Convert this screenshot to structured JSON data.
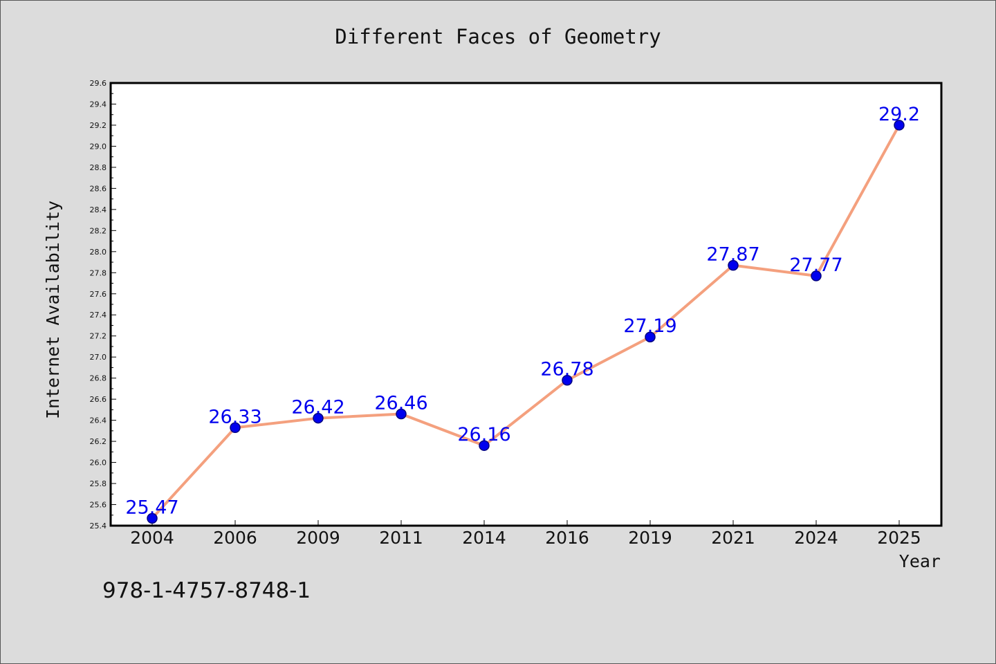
{
  "chart_data": {
    "type": "line",
    "title": "Different Faces of Geometry",
    "xlabel": "Year",
    "ylabel": "Internet Availability",
    "categories": [
      "2004",
      "2006",
      "2009",
      "2011",
      "2014",
      "2016",
      "2019",
      "2021",
      "2024",
      "2025"
    ],
    "series": [
      {
        "values": [
          25.47,
          26.33,
          26.42,
          26.46,
          26.16,
          26.78,
          27.19,
          27.87,
          27.77,
          29.2
        ]
      }
    ],
    "data_labels": [
      "25.47",
      "26.33",
      "26.42",
      "26.46",
      "26.16",
      "26.78",
      "27.19",
      "27.87",
      "27.77",
      "29.2"
    ],
    "ylim": [
      25.4,
      29.6
    ],
    "yticks": [
      "25.4",
      "25.6",
      "25.8",
      "26.0",
      "26.2",
      "26.4",
      "26.6",
      "26.8",
      "27.0",
      "27.2",
      "27.4",
      "27.6",
      "27.8",
      "28.0",
      "28.2",
      "28.4",
      "28.6",
      "28.8",
      "29.0",
      "29.2",
      "29.4",
      "29.6"
    ],
    "grid": false,
    "legend": "none",
    "colors": {
      "line": "#f4a07e",
      "marker_fill": "#0000ee",
      "marker_stroke": "#000080",
      "data_label": "#0000ee",
      "plot_background": "#ffffff",
      "figure_background": "#dcdcdc"
    }
  },
  "footnote": "978-1-4757-8748-1"
}
